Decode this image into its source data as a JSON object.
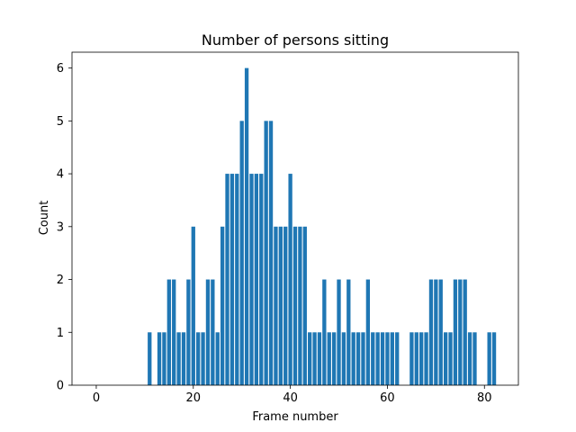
{
  "chart_data": {
    "type": "bar",
    "title": "Number of persons sitting",
    "xlabel": "Frame number",
    "ylabel": "Count",
    "xlim": [
      -5,
      87
    ],
    "ylim": [
      0,
      6.3
    ],
    "xticks": [
      0,
      20,
      40,
      60,
      80
    ],
    "yticks": [
      0,
      1,
      2,
      3,
      4,
      5,
      6
    ],
    "grid": false,
    "bar_color": "#1f77b4",
    "x": [
      11,
      12,
      13,
      14,
      15,
      16,
      17,
      18,
      19,
      20,
      21,
      22,
      23,
      24,
      25,
      26,
      27,
      28,
      29,
      30,
      31,
      32,
      33,
      34,
      35,
      36,
      37,
      38,
      39,
      40,
      41,
      42,
      43,
      44,
      45,
      46,
      47,
      48,
      49,
      50,
      51,
      52,
      53,
      54,
      55,
      56,
      57,
      58,
      59,
      60,
      61,
      62,
      63,
      64,
      65,
      66,
      67,
      68,
      69,
      70,
      71,
      72,
      73,
      74,
      75,
      76,
      77,
      78,
      79,
      80,
      81,
      82
    ],
    "values": [
      1,
      0,
      1,
      1,
      2,
      2,
      1,
      1,
      2,
      3,
      1,
      1,
      2,
      2,
      1,
      3,
      4,
      4,
      4,
      5,
      6,
      4,
      4,
      4,
      5,
      5,
      3,
      3,
      3,
      4,
      3,
      3,
      3,
      1,
      1,
      1,
      2,
      1,
      1,
      2,
      1,
      2,
      1,
      1,
      1,
      2,
      1,
      1,
      1,
      1,
      1,
      1,
      0,
      0,
      1,
      1,
      1,
      1,
      2,
      2,
      2,
      1,
      1,
      2,
      2,
      2,
      1,
      1,
      0,
      0,
      1,
      1
    ]
  }
}
